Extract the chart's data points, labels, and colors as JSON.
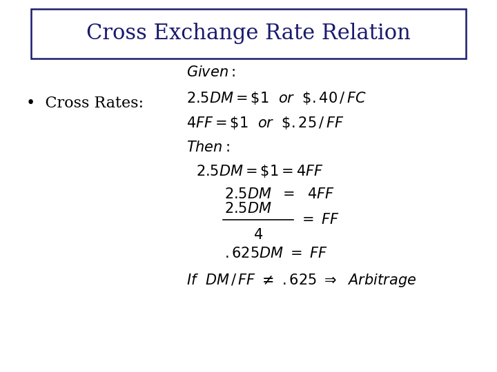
{
  "title": "Cross Exchange Rate Relation",
  "title_color": "#1a1a6e",
  "bullet_label": "•  Cross Rates:",
  "background_color": "#ffffff",
  "title_fontsize": 22,
  "body_fontsize": 15,
  "math_fontsize": 15
}
